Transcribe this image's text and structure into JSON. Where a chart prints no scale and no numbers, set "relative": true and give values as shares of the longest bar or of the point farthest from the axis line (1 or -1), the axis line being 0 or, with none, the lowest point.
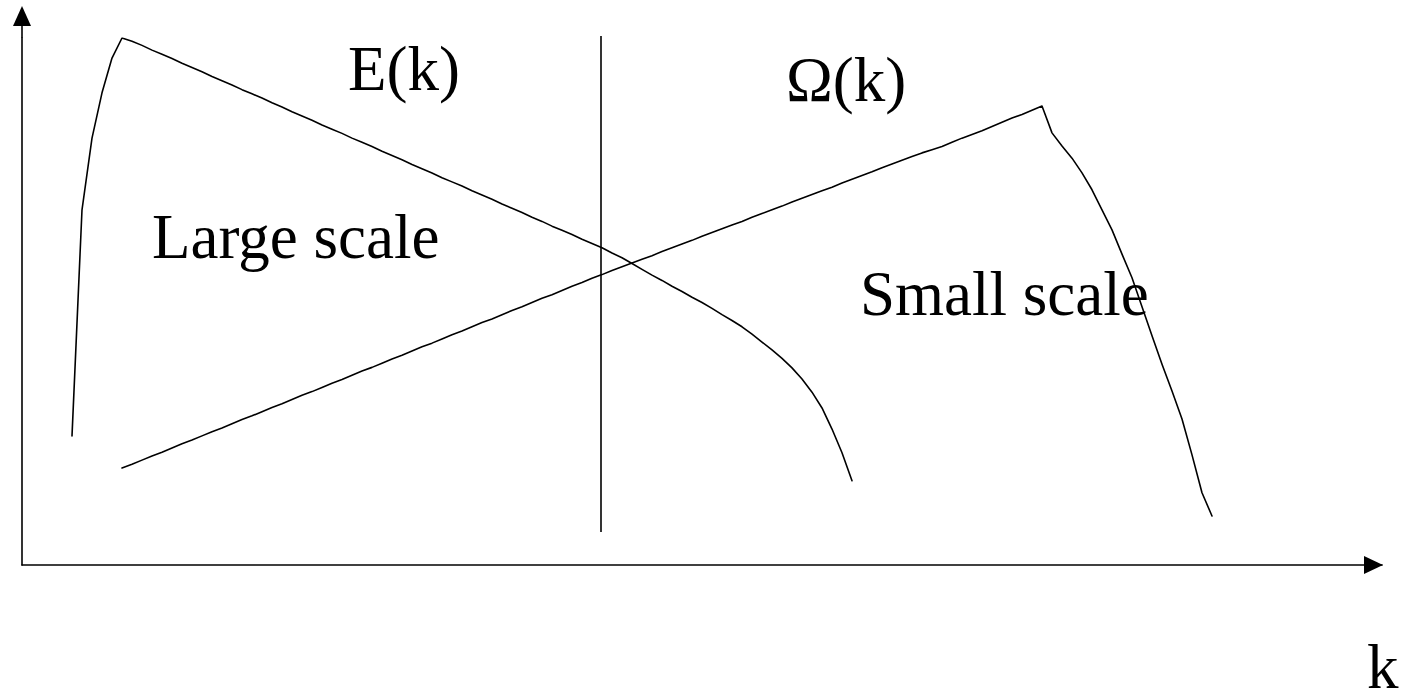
{
  "chart_data": {
    "type": "line",
    "relative": true,
    "xlabel": "k",
    "categories": [
      null,
      null,
      null,
      null,
      null,
      null,
      null,
      null,
      null,
      null,
      null,
      null,
      null,
      null,
      null,
      null,
      null,
      null,
      null,
      null,
      null,
      null,
      null,
      null,
      null,
      null,
      null,
      null,
      null,
      null,
      null,
      null,
      null,
      null,
      null,
      null,
      null,
      null,
      null,
      null,
      null,
      null,
      null,
      null,
      null,
      null,
      null,
      null,
      null,
      null,
      null,
      null,
      null,
      null,
      null,
      null,
      null,
      null,
      null,
      null,
      null,
      null,
      null,
      null,
      null,
      null,
      null,
      null,
      null,
      null,
      null,
      null,
      null,
      null,
      null,
      null,
      null,
      null,
      null,
      null,
      null,
      null,
      null,
      null,
      null,
      null,
      null,
      null,
      null,
      null,
      null,
      null,
      null,
      null,
      null,
      null,
      null,
      null,
      null,
      null,
      null,
      null,
      null,
      null,
      null,
      null,
      null,
      null,
      null,
      null,
      null,
      null,
      null,
      null,
      null,
      null,
      null,
      null,
      null,
      null,
      null,
      null,
      null,
      null,
      null,
      null,
      null,
      null,
      null,
      null,
      null,
      null,
      null,
      null,
      null,
      null,
      null
    ],
    "series": [
      {
        "name": "E(k)",
        "color": "#000000",
        "values": [
          null,
          null,
          null,
          null,
          null,
          0.245,
          0.674,
          0.81,
          0.896,
          0.962,
          1,
          0.994,
          0.986,
          0.977,
          0.969,
          0.961,
          0.952,
          0.944,
          0.936,
          0.927,
          0.919,
          0.911,
          0.902,
          0.894,
          0.886,
          0.877,
          0.869,
          0.86,
          0.852,
          0.844,
          0.835,
          0.827,
          0.819,
          0.81,
          0.802,
          0.794,
          0.785,
          0.777,
          0.769,
          0.76,
          0.752,
          0.744,
          0.735,
          0.727,
          0.719,
          0.71,
          0.702,
          0.694,
          0.685,
          0.677,
          0.669,
          0.66,
          0.652,
          0.643,
          0.635,
          0.627,
          0.618,
          0.61,
          0.602,
          0.592,
          0.583,
          0.572,
          0.561,
          0.55,
          0.54,
          0.529,
          0.519,
          0.508,
          0.498,
          0.487,
          0.475,
          0.464,
          0.452,
          0.438,
          0.423,
          0.408,
          0.392,
          0.374,
          0.353,
          0.328,
          0.298,
          0.258,
          0.213,
          0.16,
          null,
          null,
          null,
          null,
          null,
          null,
          null,
          null,
          null,
          null,
          null,
          null,
          null,
          null,
          null,
          null,
          null,
          null,
          null,
          null,
          null,
          null,
          null,
          null,
          null,
          null,
          null,
          null,
          null,
          null,
          null,
          null,
          null,
          null,
          null,
          null,
          null,
          null,
          null,
          null,
          null,
          null,
          null,
          null,
          null,
          null,
          null,
          null,
          null,
          null,
          null,
          null,
          null
        ]
      },
      {
        "name": "Ω(k)",
        "color": "#000000",
        "values": [
          null,
          null,
          null,
          null,
          null,
          null,
          null,
          null,
          null,
          null,
          0.184,
          0.191,
          0.199,
          0.207,
          0.214,
          0.222,
          0.23,
          0.237,
          0.245,
          0.253,
          0.26,
          0.268,
          0.276,
          0.283,
          0.291,
          0.299,
          0.306,
          0.314,
          0.322,
          0.329,
          0.337,
          0.345,
          0.352,
          0.36,
          0.368,
          0.375,
          0.383,
          0.391,
          0.398,
          0.406,
          0.414,
          0.421,
          0.429,
          0.437,
          0.444,
          0.452,
          0.46,
          0.467,
          0.475,
          0.483,
          0.49,
          0.498,
          0.506,
          0.513,
          0.521,
          0.529,
          0.536,
          0.544,
          0.551,
          0.559,
          0.566,
          0.573,
          0.58,
          0.587,
          0.595,
          0.602,
          0.609,
          0.616,
          0.624,
          0.631,
          0.638,
          0.645,
          0.652,
          0.66,
          0.667,
          0.674,
          0.681,
          0.689,
          0.696,
          0.703,
          0.71,
          0.717,
          0.725,
          0.732,
          0.739,
          0.746,
          0.754,
          0.761,
          0.768,
          0.775,
          0.782,
          0.788,
          0.794,
          0.802,
          0.81,
          0.817,
          0.824,
          0.832,
          0.84,
          0.848,
          0.855,
          0.863,
          0.871,
          0.82,
          0.795,
          0.772,
          0.744,
          0.712,
          0.674,
          0.636,
          0.59,
          0.545,
          0.49,
          0.435,
          0.381,
          0.33,
          0.277,
          0.209,
          0.137,
          0.093,
          null,
          null,
          null,
          null,
          null,
          null,
          null,
          null,
          null,
          null,
          null,
          null,
          null,
          null,
          null,
          null,
          null
        ]
      }
    ],
    "annotations": [
      "Large scale",
      "Small scale"
    ]
  }
}
